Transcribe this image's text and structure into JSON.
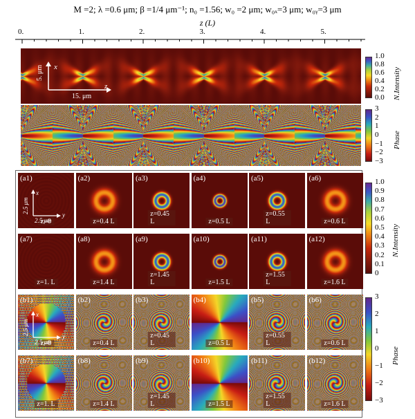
{
  "figure": {
    "title": "M =2; λ =0.6 μm; β =1/4 μm⁻¹; n₀ =1.56; w₀ =2 μm; w₀ₓ=3 μm; w₀ᵧ=3 μm",
    "z_axis_label": "z (L)",
    "z_ticks": [
      "0.",
      "1.",
      "2.",
      "3.",
      "4.",
      "5."
    ],
    "top_panel": {
      "x_label": "x",
      "x_scale": "5. μm",
      "z_label": "z",
      "z_scale": "15. μm"
    },
    "intensity_colorbar": {
      "title": "N.Intensity",
      "ticks": [
        "1.0",
        "0.8",
        "0.6",
        "0.4",
        "0.2",
        "0.0"
      ]
    },
    "phase_colorbar": {
      "title": "Phase",
      "ticks": [
        "3",
        "2",
        "1",
        "0",
        "−1",
        "−2",
        "−3"
      ]
    },
    "intensity_colorbar_2": {
      "title": "N.Intensity",
      "ticks": [
        "1.0",
        "0.9",
        "0.8",
        "0.7",
        "0.6",
        "0.5",
        "0.4",
        "0.3",
        "0.2",
        "0.1",
        "0"
      ]
    },
    "phase_colorbar_2": {
      "title": "Phase",
      "ticks": [
        "3",
        "2",
        "1",
        "0",
        "−1",
        "−2",
        "−3"
      ]
    },
    "grid_axes": {
      "x": "x",
      "y": "y",
      "x_scale": "2.5 μm",
      "y_scale": "2.5 μm"
    },
    "intensity_panels": [
      {
        "label": "(a1)",
        "z": "z=0",
        "r": 0,
        "w": 0
      },
      {
        "label": "(a2)",
        "z": "z=0.4 L",
        "r": 12,
        "w": 7
      },
      {
        "label": "(a3)",
        "z": "z=0.45 L",
        "r": 9,
        "w": 4
      },
      {
        "label": "(a4)",
        "z": "z=0.5 L",
        "r": 7,
        "w": 3
      },
      {
        "label": "(a5)",
        "z": "z=0.55 L",
        "r": 9,
        "w": 4
      },
      {
        "label": "(a6)",
        "z": "z=0.6 L",
        "r": 12,
        "w": 7
      },
      {
        "label": "(a7)",
        "z": "z=1. L",
        "r": 0,
        "w": 0
      },
      {
        "label": "(a8)",
        "z": "z=1.4 L",
        "r": 12,
        "w": 7
      },
      {
        "label": "(a9)",
        "z": "z=1.45 L",
        "r": 9,
        "w": 4
      },
      {
        "label": "(a10)",
        "z": "z=1.5 L",
        "r": 7,
        "w": 3
      },
      {
        "label": "(a11)",
        "z": "z=1.55 L",
        "r": 9,
        "w": 4
      },
      {
        "label": "(a12)",
        "z": "z=1.6 L",
        "r": 12,
        "w": 7
      }
    ],
    "phase_panels": [
      {
        "label": "(b1)",
        "z": "z=0",
        "kind": "noise"
      },
      {
        "label": "(b2)",
        "z": "z=0.4 L",
        "kind": "spiral"
      },
      {
        "label": "(b3)",
        "z": "z=0.45 L",
        "kind": "spiral"
      },
      {
        "label": "(b4)",
        "z": "z=0.5 L",
        "kind": "fan"
      },
      {
        "label": "(b5)",
        "z": "z=0.55 L",
        "kind": "spiral"
      },
      {
        "label": "(b6)",
        "z": "z=0.6 L",
        "kind": "spiral"
      },
      {
        "label": "(b7)",
        "z": "z=1. L",
        "kind": "noise"
      },
      {
        "label": "(b8)",
        "z": "z=1.4 L",
        "kind": "spiral"
      },
      {
        "label": "(b9)",
        "z": "z=1.45 L",
        "kind": "spiral"
      },
      {
        "label": "(b10)",
        "z": "z=1.5 L",
        "kind": "fan"
      },
      {
        "label": "(b11)",
        "z": "z=1.55 L",
        "kind": "spiral"
      },
      {
        "label": "(b12)",
        "z": "z=1.6 L",
        "kind": "spiral"
      }
    ]
  }
}
